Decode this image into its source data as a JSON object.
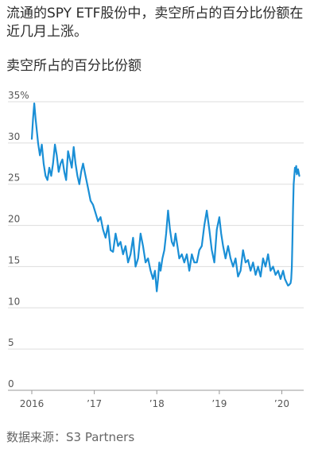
{
  "header": {
    "title": "流通的SPY ETF股份中，卖空所占的百分比份额在近几月上涨。",
    "subtitle": "卖空所占的百分比份额"
  },
  "footer": {
    "source": "数据来源：S3 Partners"
  },
  "chart_data": {
    "type": "line",
    "title": "卖空所占的百分比份额",
    "xlabel": "",
    "ylabel": "",
    "ylim": [
      0,
      35
    ],
    "yticks": [
      0,
      5,
      10,
      15,
      20,
      25,
      30,
      35
    ],
    "ytick_labels": [
      "0",
      "5",
      "10",
      "15",
      "20",
      "25",
      "30",
      "35%"
    ],
    "xlim": [
      2016.0,
      2020.35
    ],
    "xticks": [
      2016,
      2017,
      2018,
      2019,
      2020
    ],
    "xtick_labels": [
      "2016",
      "’17",
      "’18",
      "’19",
      "’20"
    ],
    "grid": true,
    "line_color": "#1a8fd6",
    "series": [
      {
        "name": "",
        "x": [
          2016.0,
          2016.02,
          2016.04,
          2016.06,
          2016.08,
          2016.1,
          2016.13,
          2016.16,
          2016.19,
          2016.22,
          2016.25,
          2016.28,
          2016.31,
          2016.34,
          2016.37,
          2016.4,
          2016.43,
          2016.46,
          2016.49,
          2016.52,
          2016.55,
          2016.58,
          2016.61,
          2016.64,
          2016.67,
          2016.7,
          2016.73,
          2016.76,
          2016.79,
          2016.82,
          2016.86,
          2016.9,
          2016.94,
          2016.98,
          2017.02,
          2017.06,
          2017.1,
          2017.14,
          2017.18,
          2017.22,
          2017.26,
          2017.3,
          2017.34,
          2017.38,
          2017.42,
          2017.46,
          2017.5,
          2017.54,
          2017.58,
          2017.62,
          2017.66,
          2017.7,
          2017.74,
          2017.78,
          2017.82,
          2017.86,
          2017.9,
          2017.94,
          2017.97,
          2018.0,
          2018.02,
          2018.04,
          2018.06,
          2018.09,
          2018.12,
          2018.15,
          2018.18,
          2018.21,
          2018.24,
          2018.27,
          2018.3,
          2018.33,
          2018.36,
          2018.4,
          2018.44,
          2018.48,
          2018.52,
          2018.56,
          2018.6,
          2018.64,
          2018.68,
          2018.72,
          2018.76,
          2018.8,
          2018.84,
          2018.88,
          2018.92,
          2018.96,
          2019.0,
          2019.03,
          2019.06,
          2019.1,
          2019.14,
          2019.18,
          2019.22,
          2019.26,
          2019.3,
          2019.34,
          2019.38,
          2019.42,
          2019.46,
          2019.5,
          2019.54,
          2019.58,
          2019.62,
          2019.66,
          2019.7,
          2019.74,
          2019.78,
          2019.82,
          2019.86,
          2019.9,
          2019.94,
          2019.98,
          2020.02,
          2020.05,
          2020.08,
          2020.1,
          2020.12,
          2020.14,
          2020.15,
          2020.16,
          2020.17,
          2020.18,
          2020.19,
          2020.2,
          2020.21,
          2020.22,
          2020.23,
          2020.24,
          2020.26,
          2020.28
        ],
        "values": [
          30.5,
          33.0,
          34.8,
          33.0,
          31.5,
          30.0,
          28.5,
          29.8,
          27.5,
          26.0,
          25.5,
          27.0,
          26.0,
          27.5,
          29.8,
          28.5,
          26.5,
          27.5,
          28.0,
          26.5,
          25.5,
          29.0,
          28.0,
          27.0,
          29.5,
          27.5,
          26.0,
          25.0,
          26.5,
          27.5,
          26.0,
          24.5,
          23.0,
          22.5,
          21.5,
          20.5,
          21.0,
          19.5,
          18.5,
          20.0,
          17.0,
          16.8,
          19.0,
          17.5,
          18.0,
          16.5,
          17.5,
          15.5,
          16.5,
          18.5,
          15.0,
          16.0,
          19.0,
          17.5,
          15.5,
          16.0,
          14.5,
          13.5,
          14.5,
          12.0,
          13.5,
          15.5,
          14.5,
          16.0,
          17.0,
          19.0,
          21.8,
          19.5,
          18.0,
          17.5,
          19.0,
          17.5,
          16.0,
          16.5,
          15.5,
          16.5,
          14.5,
          16.5,
          15.5,
          15.5,
          17.0,
          17.5,
          20.0,
          21.8,
          19.5,
          17.0,
          15.5,
          19.5,
          21.0,
          19.0,
          17.5,
          16.0,
          17.5,
          16.0,
          15.0,
          16.0,
          13.8,
          14.5,
          17.0,
          15.5,
          15.8,
          14.5,
          15.5,
          14.0,
          15.0,
          13.8,
          16.0,
          15.0,
          16.5,
          14.5,
          15.0,
          14.0,
          14.5,
          13.5,
          14.5,
          13.5,
          13.0,
          12.7,
          12.8,
          13.0,
          13.5,
          15.0,
          18.0,
          22.0,
          25.0,
          26.0,
          27.0,
          26.5,
          27.2,
          26.2,
          26.8,
          26.0
        ]
      }
    ]
  }
}
